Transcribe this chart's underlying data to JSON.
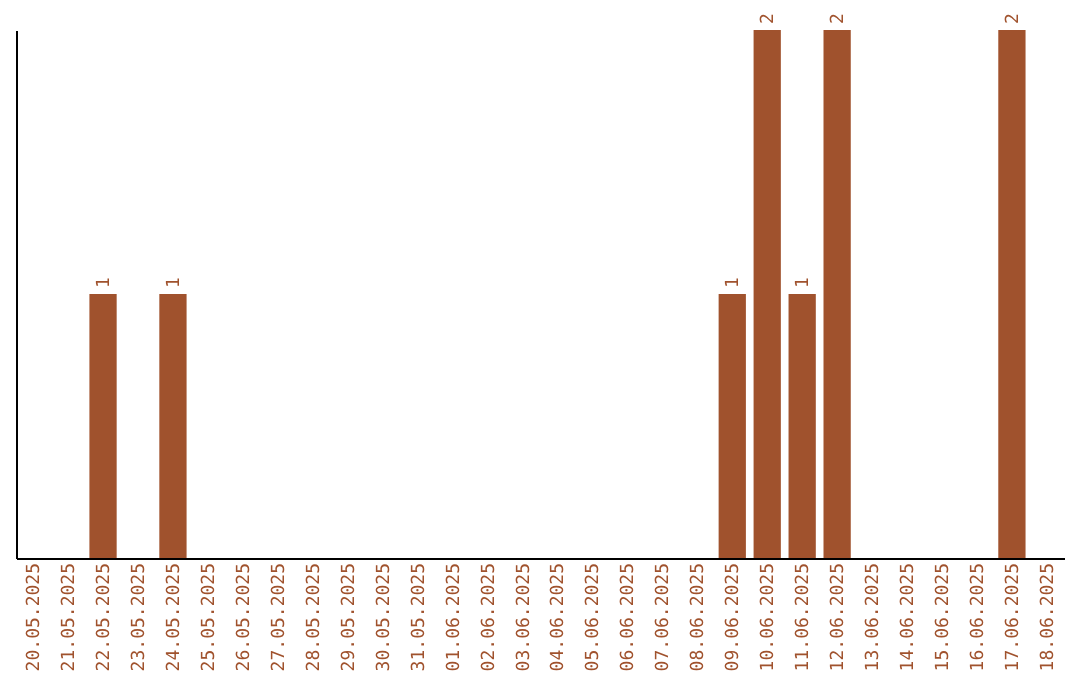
{
  "chart_data": {
    "type": "bar",
    "categories": [
      "20.05.2025",
      "21.05.2025",
      "22.05.2025",
      "23.05.2025",
      "24.05.2025",
      "25.05.2025",
      "26.05.2025",
      "27.05.2025",
      "28.05.2025",
      "29.05.2025",
      "30.05.2025",
      "31.05.2025",
      "01.06.2025",
      "02.06.2025",
      "03.06.2025",
      "04.06.2025",
      "05.06.2025",
      "06.06.2025",
      "07.06.2025",
      "08.06.2025",
      "09.06.2025",
      "10.06.2025",
      "11.06.2025",
      "12.06.2025",
      "13.06.2025",
      "14.06.2025",
      "15.06.2025",
      "16.06.2025",
      "17.06.2025",
      "18.06.2025"
    ],
    "values": [
      0,
      0,
      1,
      0,
      1,
      0,
      0,
      0,
      0,
      0,
      0,
      0,
      0,
      0,
      0,
      0,
      0,
      0,
      0,
      0,
      1,
      2,
      1,
      2,
      0,
      0,
      0,
      0,
      2,
      0
    ],
    "value_labels": [
      null,
      null,
      "1",
      null,
      "1",
      null,
      null,
      null,
      null,
      null,
      null,
      null,
      null,
      null,
      null,
      null,
      null,
      null,
      null,
      null,
      "1",
      "2",
      "1",
      "2",
      null,
      null,
      null,
      null,
      "2",
      null
    ],
    "color": "#a0522d",
    "grid": false,
    "tick_labels": "x"
  }
}
